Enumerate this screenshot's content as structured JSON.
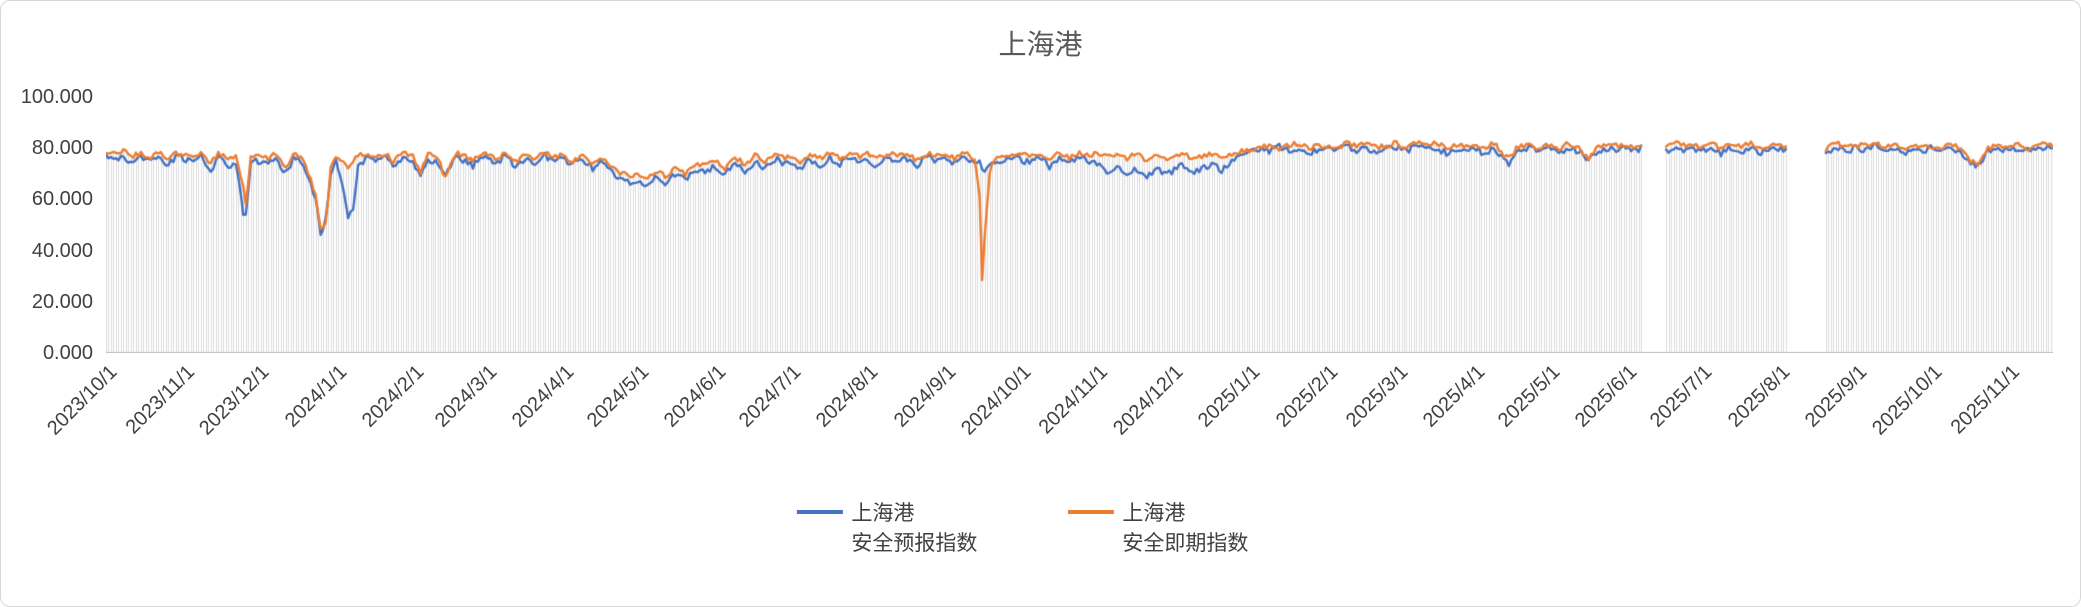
{
  "chart_data": {
    "type": "line",
    "title": "上海港",
    "xlabel": "",
    "ylabel": "",
    "ylim": [
      0,
      100
    ],
    "grid": "vertical-droplines",
    "legend_position": "bottom",
    "title_color": "#595959",
    "axis_text_color": "#404040",
    "dropline_color": "#dcdcdc",
    "axis_line_color": "#bfbfbf",
    "y_ticks": [
      {
        "label": "0.000",
        "value": 0
      },
      {
        "label": "20.000",
        "value": 20
      },
      {
        "label": "40.000",
        "value": 40
      },
      {
        "label": "60.000",
        "value": 60
      },
      {
        "label": "80.000",
        "value": 80
      },
      {
        "label": "100.000",
        "value": 100
      }
    ],
    "x_ticks": [
      {
        "label": "2023/10/1",
        "day": 0
      },
      {
        "label": "2023/11/1",
        "day": 31
      },
      {
        "label": "2023/12/1",
        "day": 61
      },
      {
        "label": "2024/1/1",
        "day": 92
      },
      {
        "label": "2024/2/1",
        "day": 123
      },
      {
        "label": "2024/3/1",
        "day": 152
      },
      {
        "label": "2024/4/1",
        "day": 183
      },
      {
        "label": "2024/5/1",
        "day": 213
      },
      {
        "label": "2024/6/1",
        "day": 244
      },
      {
        "label": "2024/7/1",
        "day": 274
      },
      {
        "label": "2024/8/1",
        "day": 305
      },
      {
        "label": "2024/9/1",
        "day": 336
      },
      {
        "label": "2024/10/1",
        "day": 366
      },
      {
        "label": "2024/11/1",
        "day": 397
      },
      {
        "label": "2024/12/1",
        "day": 427
      },
      {
        "label": "2025/1/1",
        "day": 458
      },
      {
        "label": "2025/2/1",
        "day": 489
      },
      {
        "label": "2025/3/1",
        "day": 517
      },
      {
        "label": "2025/4/1",
        "day": 548
      },
      {
        "label": "2025/5/1",
        "day": 578
      },
      {
        "label": "2025/6/1",
        "day": 609
      },
      {
        "label": "2025/7/1",
        "day": 639
      },
      {
        "label": "2025/8/1",
        "day": 670
      },
      {
        "label": "2025/9/1",
        "day": 701
      },
      {
        "label": "2025/10/1",
        "day": 731
      },
      {
        "label": "2025/11/1",
        "day": 762
      }
    ],
    "x_start_date": "2023/10/1",
    "total_days": 780,
    "series": [
      {
        "name": "上海港 安全预报指数",
        "legend_line1": "上海港",
        "legend_line2": "安全预报指数",
        "color": "#4472C4",
        "jitter": 1.3
      },
      {
        "name": "上海港 安全即期指数",
        "legend_line1": "上海港",
        "legend_line2": "安全即期指数",
        "color": "#ED7D31",
        "jitter": 1.0
      }
    ],
    "anchors_format": [
      "day_offset",
      "安全预报指数",
      "安全即期指数"
    ],
    "anchors": [
      [
        0,
        78,
        79
      ],
      [
        3,
        76,
        78
      ],
      [
        7,
        77,
        79
      ],
      [
        10,
        74,
        77
      ],
      [
        14,
        77,
        78
      ],
      [
        17,
        75,
        76
      ],
      [
        21,
        77,
        78
      ],
      [
        25,
        73,
        76
      ],
      [
        28,
        77,
        78
      ],
      [
        31,
        76,
        78
      ],
      [
        35,
        74,
        77
      ],
      [
        38,
        77,
        78
      ],
      [
        42,
        70,
        74
      ],
      [
        45,
        76,
        78
      ],
      [
        49,
        73,
        76
      ],
      [
        52,
        74,
        77
      ],
      [
        55,
        55,
        65
      ],
      [
        56,
        53,
        58
      ],
      [
        58,
        75,
        77
      ],
      [
        61,
        75,
        77
      ],
      [
        65,
        74,
        76
      ],
      [
        68,
        76,
        78
      ],
      [
        72,
        70,
        72
      ],
      [
        75,
        76,
        78
      ],
      [
        79,
        74,
        76
      ],
      [
        84,
        60,
        62
      ],
      [
        86,
        47,
        48
      ],
      [
        88,
        52,
        50
      ],
      [
        90,
        70,
        72
      ],
      [
        92,
        75,
        77
      ],
      [
        95,
        65,
        74
      ],
      [
        97,
        52,
        72
      ],
      [
        99,
        56,
        75
      ],
      [
        101,
        74,
        77
      ],
      [
        105,
        76,
        78
      ],
      [
        108,
        74,
        76
      ],
      [
        112,
        77,
        78
      ],
      [
        115,
        72,
        75
      ],
      [
        119,
        76,
        78
      ],
      [
        123,
        75,
        77
      ],
      [
        126,
        68,
        70
      ],
      [
        129,
        76,
        78
      ],
      [
        133,
        74,
        76
      ],
      [
        136,
        70,
        68
      ],
      [
        140,
        76,
        78
      ],
      [
        144,
        75,
        77
      ],
      [
        147,
        73,
        75
      ],
      [
        150,
        76,
        78
      ],
      [
        152,
        76,
        78
      ],
      [
        156,
        74,
        76
      ],
      [
        160,
        77,
        78
      ],
      [
        164,
        73,
        75
      ],
      [
        168,
        76,
        77
      ],
      [
        172,
        74,
        76
      ],
      [
        176,
        77,
        78
      ],
      [
        180,
        75,
        77
      ],
      [
        183,
        76,
        77
      ],
      [
        187,
        74,
        75
      ],
      [
        191,
        76,
        77
      ],
      [
        195,
        72,
        74
      ],
      [
        199,
        75,
        76
      ],
      [
        203,
        70,
        72
      ],
      [
        207,
        68,
        70
      ],
      [
        210,
        66,
        69
      ],
      [
        213,
        67,
        70
      ],
      [
        216,
        65,
        68
      ],
      [
        220,
        68,
        71
      ],
      [
        224,
        66,
        69
      ],
      [
        228,
        70,
        72
      ],
      [
        232,
        68,
        70
      ],
      [
        236,
        72,
        74
      ],
      [
        240,
        70,
        73
      ],
      [
        244,
        73,
        75
      ],
      [
        248,
        70,
        72
      ],
      [
        252,
        74,
        76
      ],
      [
        256,
        71,
        74
      ],
      [
        260,
        75,
        77
      ],
      [
        264,
        72,
        75
      ],
      [
        268,
        76,
        77
      ],
      [
        272,
        74,
        76
      ],
      [
        274,
        75,
        77
      ],
      [
        278,
        72,
        75
      ],
      [
        282,
        76,
        78
      ],
      [
        286,
        73,
        76
      ],
      [
        290,
        76,
        78
      ],
      [
        294,
        74,
        76
      ],
      [
        298,
        77,
        78
      ],
      [
        302,
        75,
        77
      ],
      [
        305,
        76,
        78
      ],
      [
        309,
        73,
        76
      ],
      [
        313,
        77,
        78
      ],
      [
        317,
        74,
        77
      ],
      [
        321,
        76,
        78
      ],
      [
        325,
        73,
        75
      ],
      [
        329,
        77,
        78
      ],
      [
        333,
        75,
        77
      ],
      [
        336,
        76,
        78
      ],
      [
        340,
        74,
        76
      ],
      [
        344,
        77,
        78
      ],
      [
        348,
        74,
        76
      ],
      [
        350,
        74,
        62
      ],
      [
        351,
        72,
        28
      ],
      [
        352,
        72,
        45
      ],
      [
        354,
        74,
        70
      ],
      [
        356,
        74,
        76
      ],
      [
        359,
        75,
        77
      ],
      [
        363,
        76,
        78
      ],
      [
        366,
        76,
        78
      ],
      [
        370,
        74,
        77
      ],
      [
        374,
        77,
        78
      ],
      [
        378,
        73,
        76
      ],
      [
        382,
        76,
        78
      ],
      [
        386,
        74,
        76
      ],
      [
        390,
        77,
        78
      ],
      [
        394,
        75,
        77
      ],
      [
        397,
        74,
        78
      ],
      [
        401,
        71,
        77
      ],
      [
        405,
        73,
        78
      ],
      [
        409,
        70,
        76
      ],
      [
        413,
        72,
        78
      ],
      [
        417,
        69,
        75
      ],
      [
        421,
        72,
        77
      ],
      [
        425,
        70,
        76
      ],
      [
        427,
        71,
        77
      ],
      [
        431,
        73,
        78
      ],
      [
        435,
        70,
        76
      ],
      [
        439,
        72,
        77
      ],
      [
        443,
        74,
        78
      ],
      [
        447,
        71,
        76
      ],
      [
        451,
        75,
        78
      ],
      [
        455,
        77,
        79
      ],
      [
        458,
        78,
        79
      ],
      [
        462,
        80,
        80
      ],
      [
        466,
        79,
        81
      ],
      [
        470,
        81,
        80
      ],
      [
        474,
        79,
        81
      ],
      [
        478,
        80,
        82
      ],
      [
        482,
        78,
        80
      ],
      [
        486,
        80,
        81
      ],
      [
        489,
        80,
        81
      ],
      [
        493,
        79,
        80
      ],
      [
        497,
        81,
        82
      ],
      [
        501,
        79,
        81
      ],
      [
        505,
        80,
        82
      ],
      [
        509,
        78,
        80
      ],
      [
        513,
        80,
        81
      ],
      [
        517,
        80,
        82
      ],
      [
        521,
        79,
        80
      ],
      [
        525,
        81,
        82
      ],
      [
        529,
        79,
        81
      ],
      [
        533,
        80,
        82
      ],
      [
        537,
        78,
        80
      ],
      [
        541,
        80,
        81
      ],
      [
        545,
        79,
        81
      ],
      [
        548,
        80,
        81
      ],
      [
        552,
        78,
        80
      ],
      [
        556,
        80,
        82
      ],
      [
        560,
        75,
        77
      ],
      [
        562,
        74,
        76
      ],
      [
        566,
        79,
        81
      ],
      [
        570,
        80,
        81
      ],
      [
        574,
        79,
        80
      ],
      [
        578,
        80,
        81
      ],
      [
        582,
        78,
        80
      ],
      [
        586,
        80,
        82
      ],
      [
        590,
        79,
        80
      ],
      [
        594,
        75,
        76
      ],
      [
        598,
        79,
        81
      ],
      [
        602,
        80,
        81
      ],
      [
        606,
        79,
        81
      ],
      [
        609,
        80,
        81
      ],
      [
        612,
        79,
        80
      ],
      [
        615,
        80,
        81
      ],
      [
        625,
        79,
        80
      ],
      [
        628,
        80,
        82
      ],
      [
        632,
        79,
        81
      ],
      [
        636,
        80,
        81
      ],
      [
        639,
        79,
        81
      ],
      [
        643,
        80,
        82
      ],
      [
        647,
        78,
        80
      ],
      [
        651,
        80,
        81
      ],
      [
        655,
        79,
        81
      ],
      [
        659,
        80,
        82
      ],
      [
        663,
        78,
        80
      ],
      [
        667,
        80,
        81
      ],
      [
        670,
        79,
        81
      ],
      [
        673,
        80,
        81
      ],
      [
        689,
        79,
        80
      ],
      [
        693,
        80,
        82
      ],
      [
        697,
        79,
        81
      ],
      [
        701,
        80,
        81
      ],
      [
        705,
        79,
        81
      ],
      [
        709,
        81,
        82
      ],
      [
        713,
        79,
        80
      ],
      [
        717,
        80,
        82
      ],
      [
        721,
        78,
        80
      ],
      [
        725,
        80,
        81
      ],
      [
        729,
        79,
        81
      ],
      [
        731,
        80,
        81
      ],
      [
        735,
        79,
        80
      ],
      [
        739,
        80,
        82
      ],
      [
        743,
        78,
        80
      ],
      [
        747,
        74,
        75
      ],
      [
        750,
        73,
        74
      ],
      [
        754,
        79,
        80
      ],
      [
        758,
        80,
        81
      ],
      [
        762,
        79,
        81
      ],
      [
        766,
        80,
        82
      ],
      [
        770,
        79,
        80
      ],
      [
        774,
        80,
        81
      ],
      [
        778,
        81,
        82
      ],
      [
        780,
        80,
        81
      ]
    ],
    "gaps": [
      [
        616,
        624
      ],
      [
        674,
        688
      ]
    ]
  }
}
